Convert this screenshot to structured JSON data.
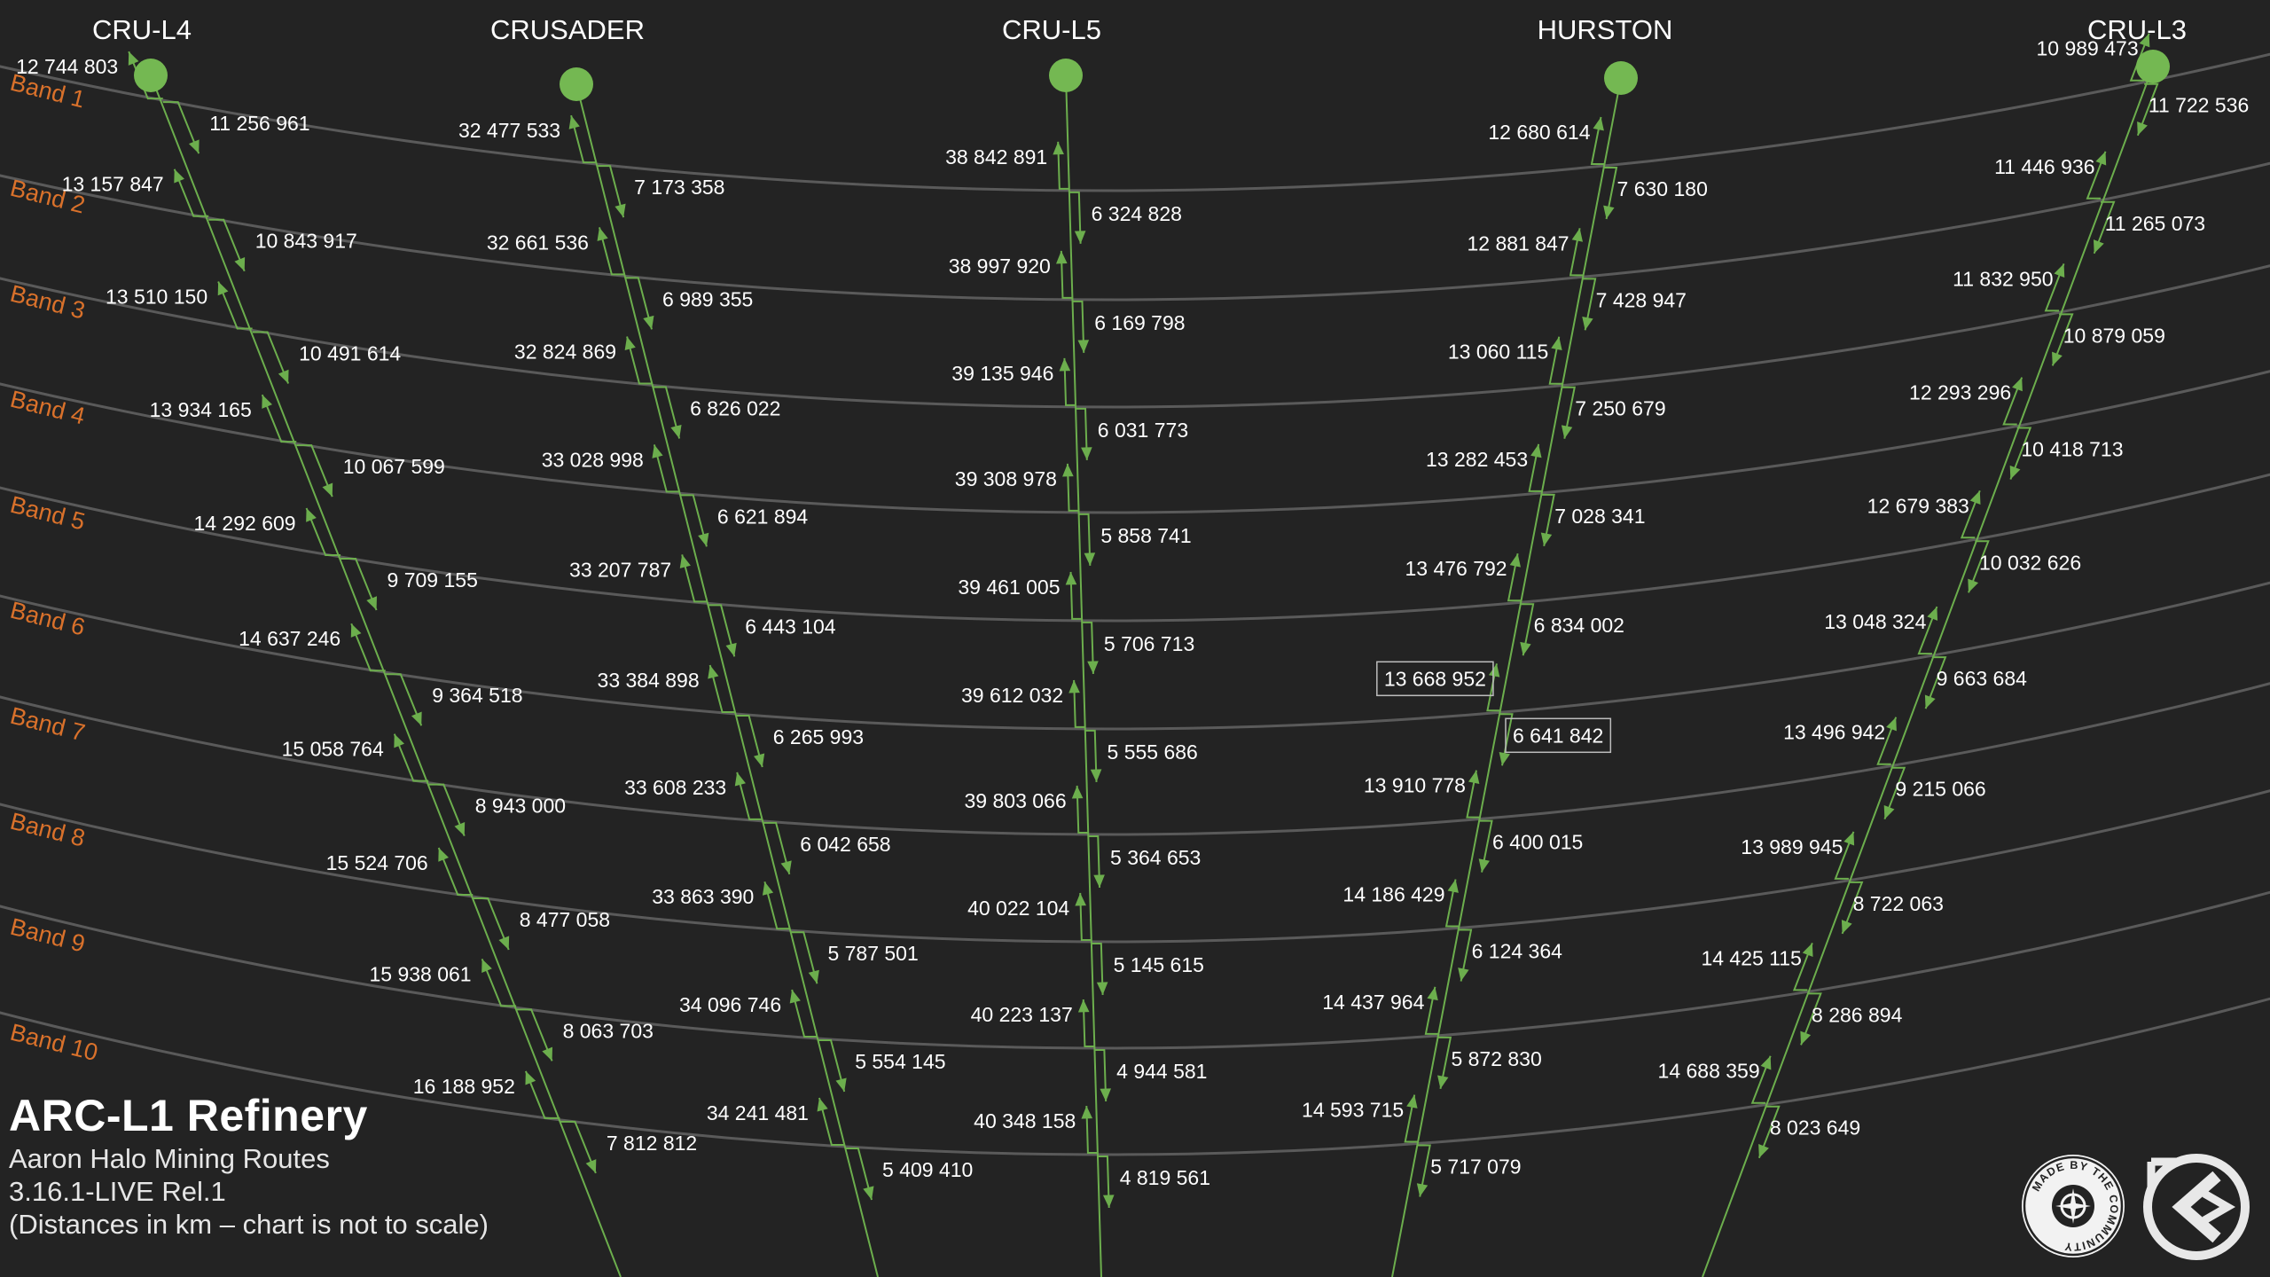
{
  "info": {
    "title": "ARC-L1 Refinery",
    "subtitle": "Aaron Halo Mining Routes",
    "version": "3.16.1-LIVE Rel.1",
    "note": "(Distances in km – chart is not to scale)"
  },
  "logos": {
    "community": "MADE BY THE COMMUNITY",
    "community_icon": "community-seal-icon",
    "brand_icon": "route-logo-icon"
  },
  "colors": {
    "background": "#232323",
    "band_line": "#5a5a5a",
    "band_label": "#d9712b",
    "route_line": "#6cae4d",
    "node": "#74b852",
    "text": "#ffffff"
  },
  "bands": [
    "Band 1",
    "Band 2",
    "Band 3",
    "Band 4",
    "Band 5",
    "Band 6",
    "Band 7",
    "Band 8",
    "Band 9",
    "Band 10"
  ],
  "destinations": [
    {
      "name": "CRU-L4",
      "in": [
        "12 744 803",
        "13 157 847",
        "13 510 150",
        "13 934 165",
        "14 292 609",
        "14 637 246",
        "15 058 764",
        "15 524 706",
        "15 938 061",
        "16 188 952"
      ],
      "out": [
        "11 256 961",
        "10 843 917",
        "10 491 614",
        "10 067 599",
        "9 709 155",
        "9 364 518",
        "8 943 000",
        "8 477 058",
        "8 063 703",
        "7 812 812"
      ]
    },
    {
      "name": "CRUSADER",
      "in": [
        "32 477 533",
        "32 661 536",
        "32 824 869",
        "33 028 998",
        "33 207 787",
        "33 384 898",
        "33 608 233",
        "33 863 390",
        "34 096 746",
        "34 241 481"
      ],
      "out": [
        "7 173 358",
        "6 989 355",
        "6 826 022",
        "6 621 894",
        "6 443 104",
        "6 265 993",
        "6 042 658",
        "5 787 501",
        "5 554 145",
        "5 409 410"
      ]
    },
    {
      "name": "CRU-L5",
      "in": [
        "38 842 891",
        "38 997 920",
        "39 135 946",
        "39 308 978",
        "39 461 005",
        "39 612 032",
        "39 803 066",
        "40 022 104",
        "40 223 137",
        "40 348 158"
      ],
      "out": [
        "6 324 828",
        "6 169 798",
        "6 031 773",
        "5 858 741",
        "5 706 713",
        "5 555 686",
        "5 364 653",
        "5 145 615",
        "4 944 581",
        "4 819 561"
      ]
    },
    {
      "name": "HURSTON",
      "in": [
        "12 680 614",
        "12 881 847",
        "13 060 115",
        "13 282 453",
        "13 476 792",
        "13 668 952",
        "13 910 778",
        "14 186 429",
        "14 437 964",
        "14 593 715"
      ],
      "out": [
        "7 630 180",
        "7 428 947",
        "7 250 679",
        "7 028 341",
        "6 834 002",
        "6 641 842",
        "6 400 015",
        "6 124 364",
        "5 872 830",
        "5 717 079"
      ],
      "highlight_in": 5,
      "highlight_out": 5
    },
    {
      "name": "CRU-L3",
      "in": [
        "10 989 473",
        "11 446 936",
        "11 832 950",
        "12 293 296",
        "12 679 383",
        "13 048 324",
        "13 496 942",
        "13 989 945",
        "14 425 115",
        "14 688 359"
      ],
      "out": [
        "11 722 536",
        "11 265 073",
        "10 879 059",
        "10 418 713",
        "10 032 626",
        "9 663 684",
        "9 215 066",
        "8 722 063",
        "8 286 894",
        "8 023 649"
      ]
    }
  ]
}
